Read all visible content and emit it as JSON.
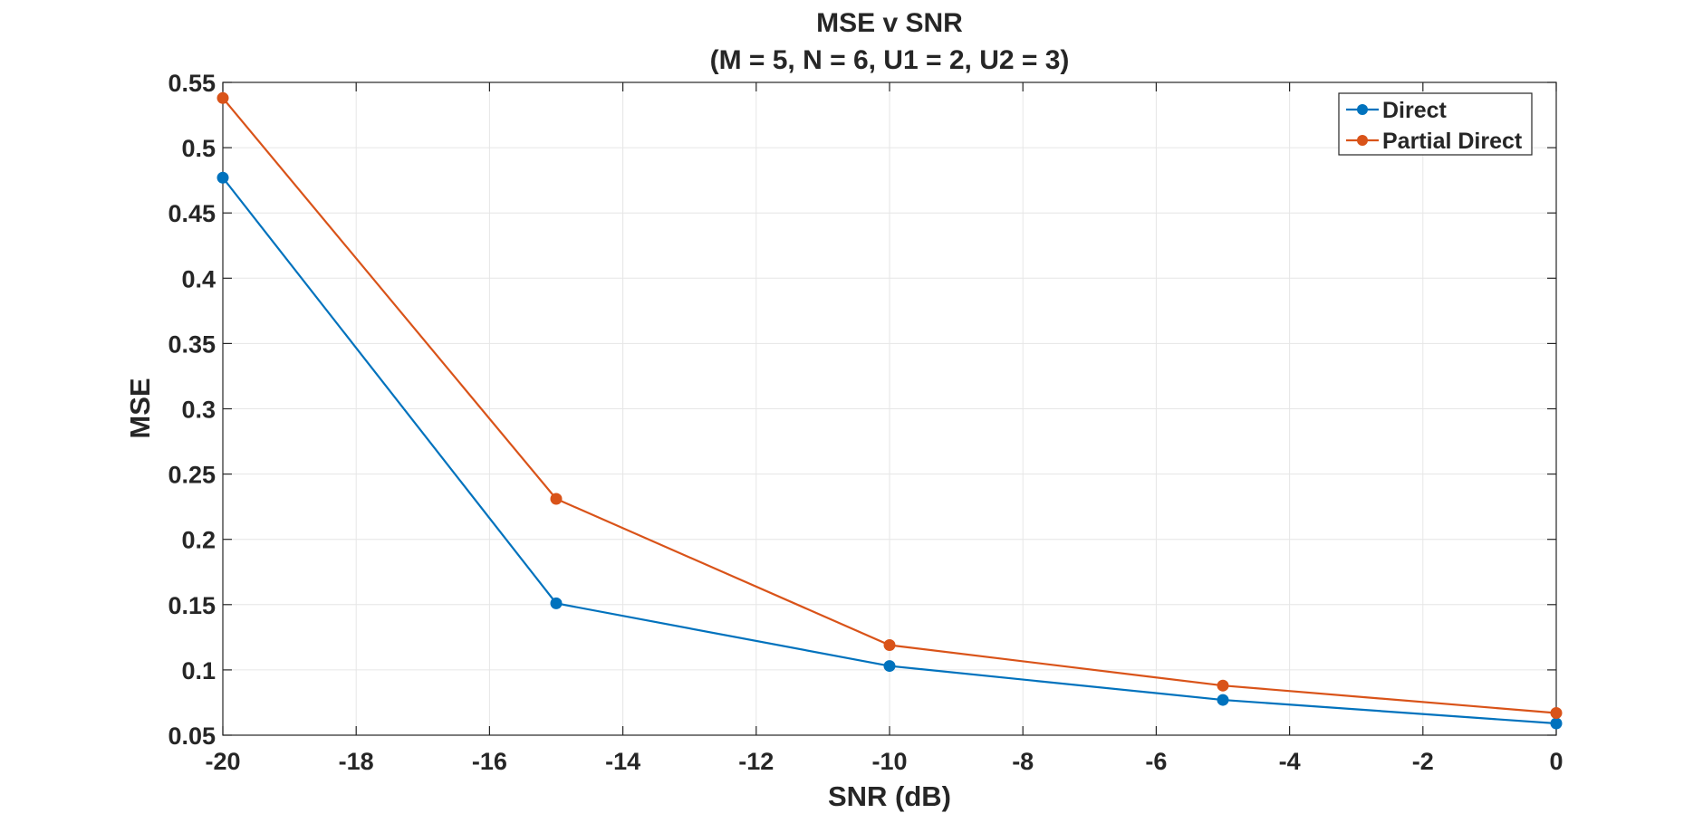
{
  "chart_data": {
    "type": "line",
    "title": "MSE v SNR",
    "subtitle": "(M = 5, N = 6, U1 = 2, U2 = 3)",
    "xlabel": "SNR (dB)",
    "ylabel": "MSE",
    "xlim": [
      -20,
      0
    ],
    "ylim": [
      0.05,
      0.55
    ],
    "xticks": [
      -20,
      -18,
      -16,
      -14,
      -12,
      -10,
      -8,
      -6,
      -4,
      -2,
      0
    ],
    "yticks": [
      0.05,
      0.1,
      0.15,
      0.2,
      0.25,
      0.3,
      0.35,
      0.4,
      0.45,
      0.5,
      0.55
    ],
    "grid": true,
    "legend_position": "top-right",
    "x": [
      -20,
      -15,
      -10,
      -5,
      0
    ],
    "series": [
      {
        "name": "Direct",
        "color": "#0072BD",
        "values": [
          0.477,
          0.151,
          0.103,
          0.077,
          0.059
        ]
      },
      {
        "name": "Partial Direct",
        "color": "#D95319",
        "values": [
          0.538,
          0.231,
          0.119,
          0.088,
          0.067
        ]
      }
    ]
  }
}
